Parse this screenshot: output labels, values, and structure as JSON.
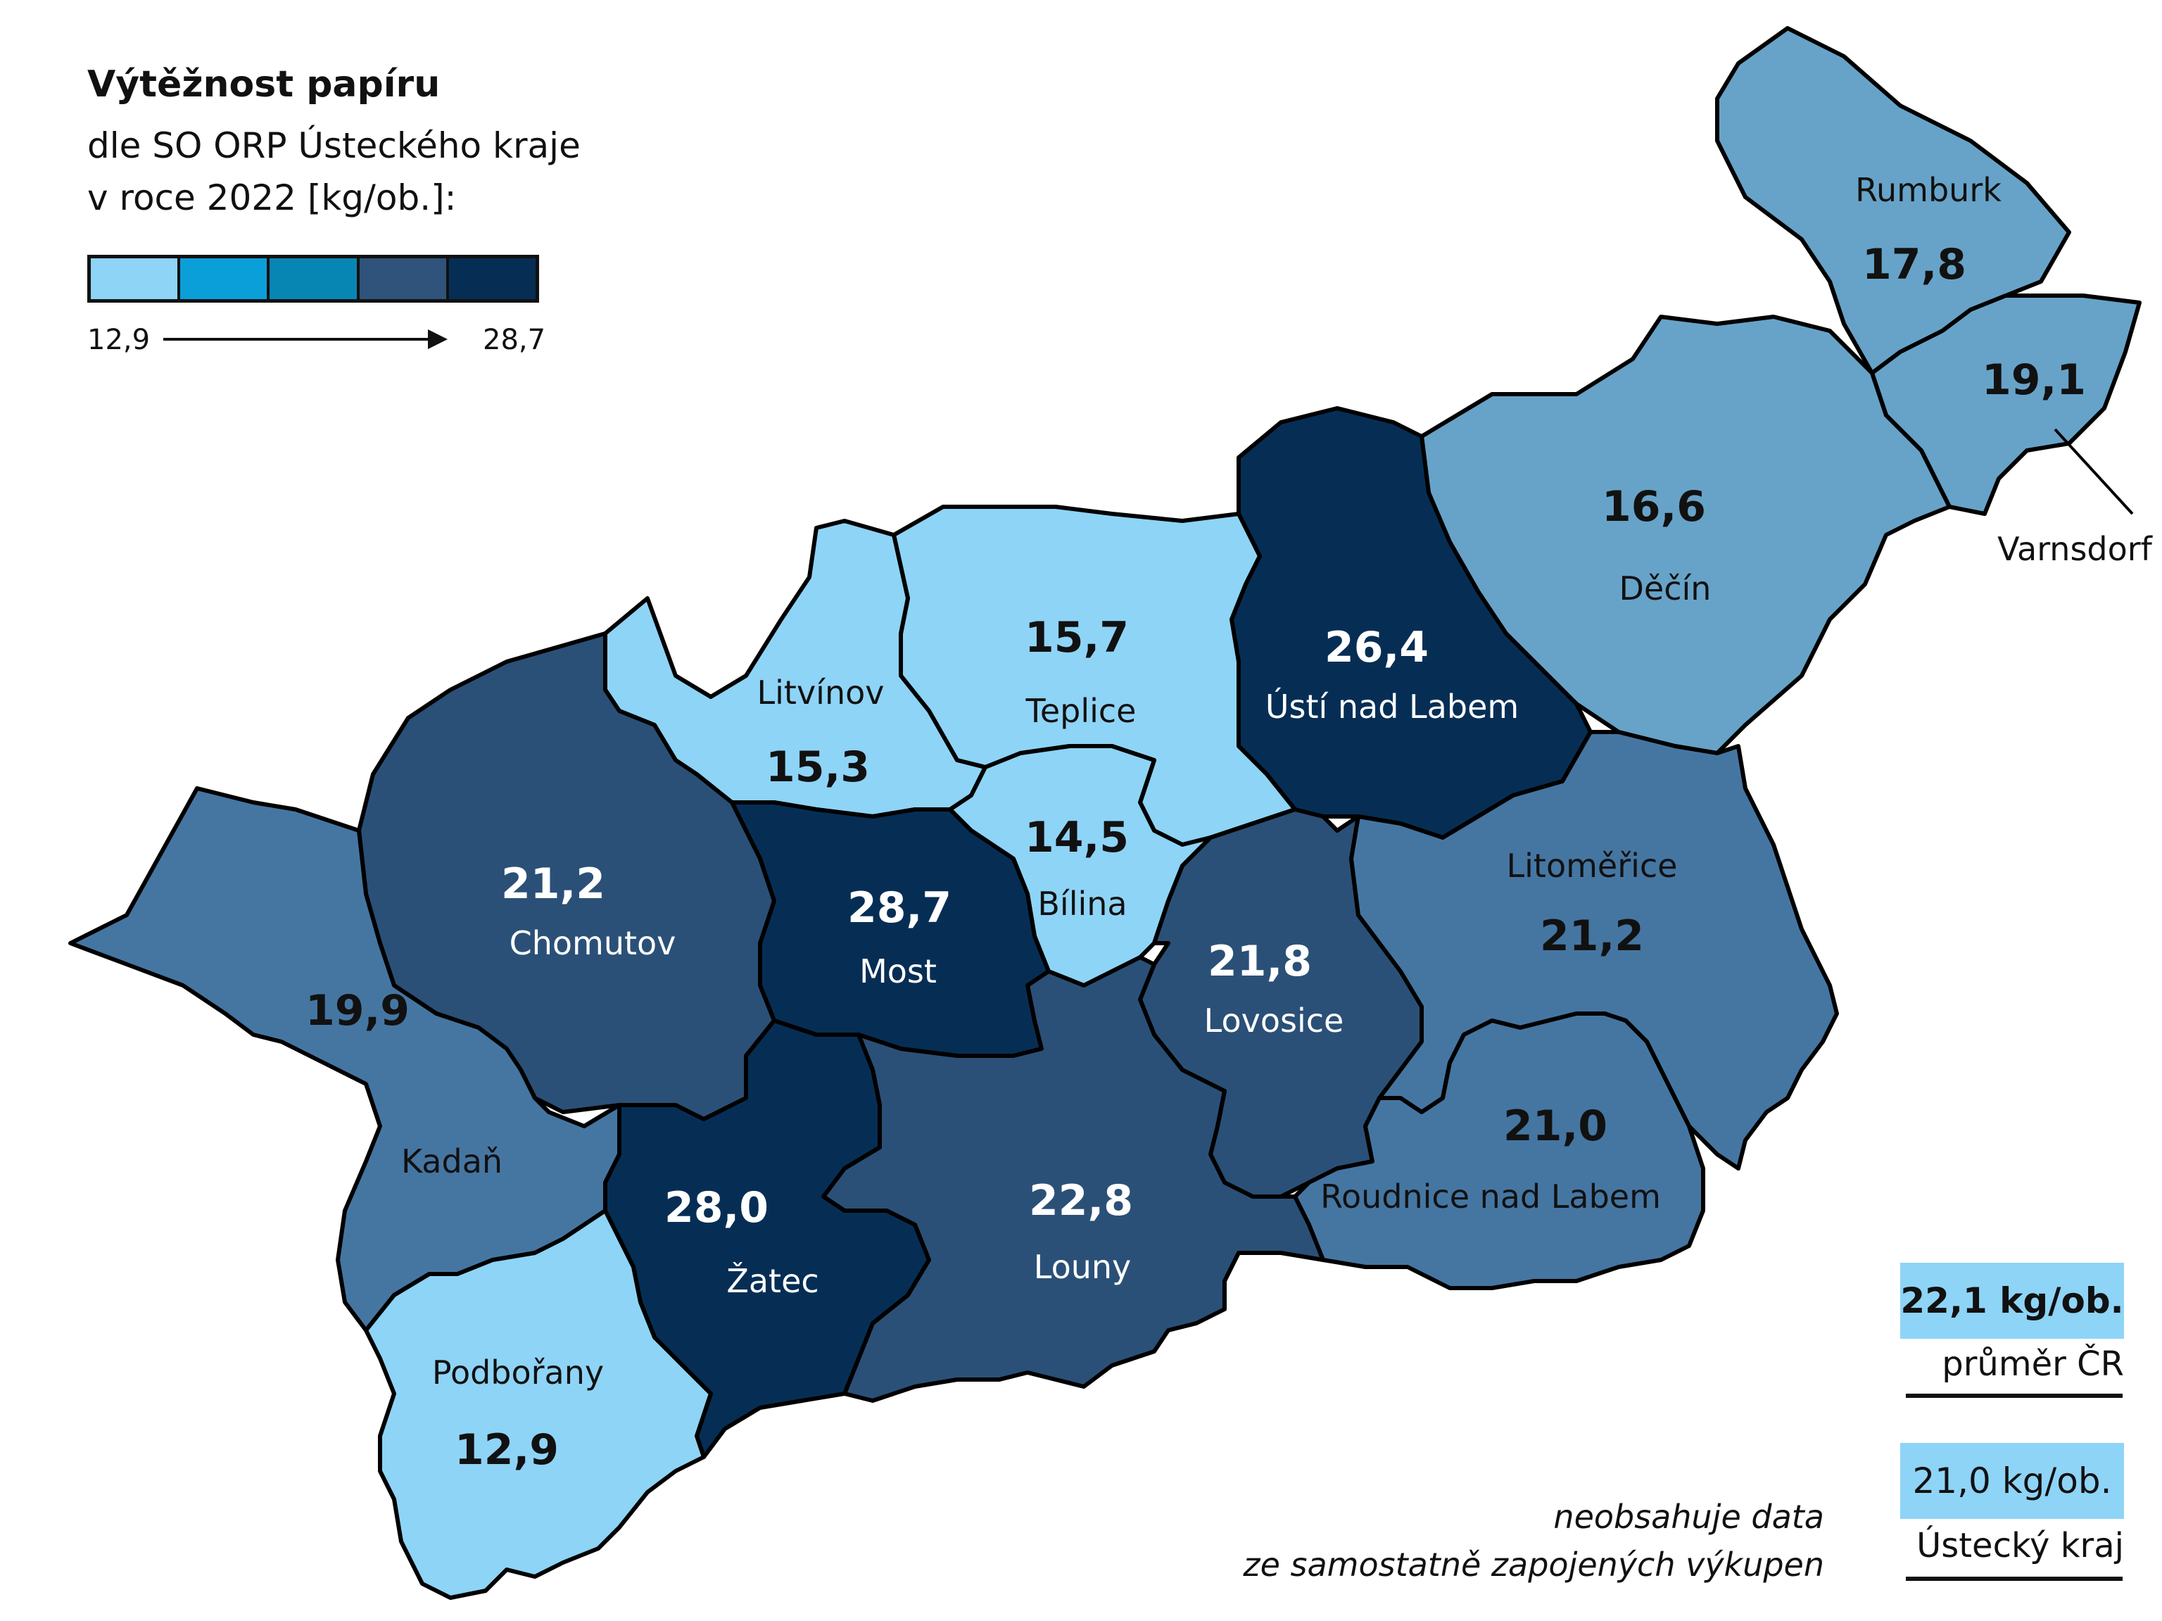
{
  "title": "Výtěžnost papíru",
  "subtitle_line1": "dle SO ORP Ústeckého kraje",
  "subtitle_line2": "v roce 2022 [kg/ob.]:",
  "legend": {
    "min": "12,9",
    "max": "28,7",
    "colors": [
      "#8ed4f7",
      "#0b9fd9",
      "#0886b3",
      "#2f537a",
      "#062e55"
    ]
  },
  "regions": [
    {
      "name": "Rumburk",
      "value": "17,8",
      "color": "#67a3c8"
    },
    {
      "name": "Varnsdorf",
      "value": "19,1",
      "color": "#67a3c8"
    },
    {
      "name": "Děčín",
      "value": "16,6",
      "color": "#67a3c8"
    },
    {
      "name": "Ústí nad Labem",
      "value": "26,4",
      "color": "#062e55"
    },
    {
      "name": "Teplice",
      "value": "15,7",
      "color": "#8ed4f7"
    },
    {
      "name": "Litvínov",
      "value": "15,3",
      "color": "#8ed4f7"
    },
    {
      "name": "Bílina",
      "value": "14,5",
      "color": "#8ed4f7"
    },
    {
      "name": "Most",
      "value": "28,7",
      "color": "#062e55"
    },
    {
      "name": "Chomutov",
      "value": "21,2",
      "color": "#2b5077"
    },
    {
      "name": "Kadaň",
      "value": "19,9",
      "color": "#4576a2"
    },
    {
      "name": "Lovosice",
      "value": "21,8",
      "color": "#2b5077"
    },
    {
      "name": "Litoměřice",
      "value": "21,2",
      "color": "#4576a2"
    },
    {
      "name": "Roudnice nad Labem",
      "value": "21,0",
      "color": "#4576a2"
    },
    {
      "name": "Louny",
      "value": "22,8",
      "color": "#2b5077"
    },
    {
      "name": "Žatec",
      "value": "28,0",
      "color": "#062e55"
    },
    {
      "name": "Podbořany",
      "value": "12,9",
      "color": "#8ed4f7"
    }
  ],
  "cr_average": {
    "value": "22,1 kg/ob.",
    "label": "průměr ČR"
  },
  "kraj_average": {
    "value": "21,0 kg/ob.",
    "label": "Ústecký kraj"
  },
  "note_line1": "neobsahuje data",
  "note_line2": "ze samostatně zapojených výkupen"
}
